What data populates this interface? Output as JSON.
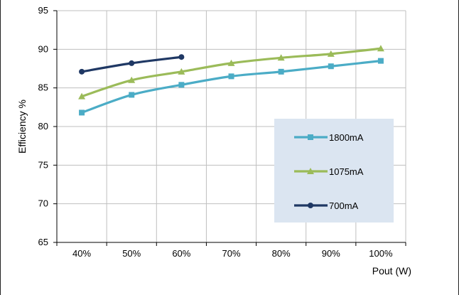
{
  "chart_data": {
    "type": "line",
    "xlabel": "Pout (W)",
    "ylabel": "Efficiency %",
    "categories": [
      "40%",
      "50%",
      "60%",
      "70%",
      "80%",
      "90%",
      "100%"
    ],
    "ylim": [
      65,
      95
    ],
    "yticks": [
      "65",
      "70",
      "75",
      "80",
      "85",
      "90",
      "95"
    ],
    "grid": "both",
    "legend_position": "bottom-right",
    "series": [
      {
        "name": "1800mA",
        "color": "#4bacc6",
        "marker": "square",
        "values": [
          81.8,
          84.1,
          85.4,
          86.5,
          87.1,
          87.8,
          88.5
        ]
      },
      {
        "name": "1075mA",
        "color": "#9bbb59",
        "marker": "triangle",
        "values": [
          83.9,
          86.0,
          87.1,
          88.2,
          88.9,
          89.4,
          90.1
        ]
      },
      {
        "name": "700mA",
        "color": "#1f3864",
        "marker": "circle",
        "values": [
          87.1,
          88.2,
          89.0,
          null,
          null,
          null,
          null
        ]
      }
    ]
  }
}
